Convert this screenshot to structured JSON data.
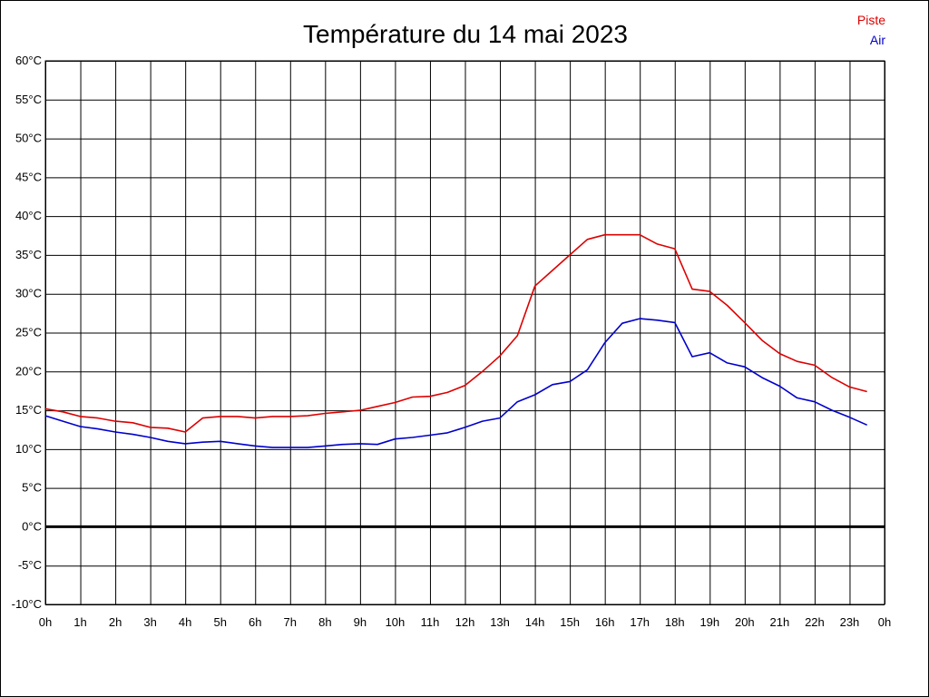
{
  "chart_data": {
    "type": "line",
    "title": "Température du 14 mai 2023",
    "y_unit": "°C",
    "ylim": [
      -10,
      60
    ],
    "y_ticks": [
      "60°C",
      "55°C",
      "50°C",
      "45°C",
      "40°C",
      "35°C",
      "30°C",
      "25°C",
      "20°C",
      "15°C",
      "10°C",
      "5°C",
      "0°C",
      "-5°C",
      "-10°C"
    ],
    "y_tick_values": [
      60,
      55,
      50,
      45,
      40,
      35,
      30,
      25,
      20,
      15,
      10,
      5,
      0,
      -5,
      -10
    ],
    "x_range": [
      0,
      24
    ],
    "x_ticks": [
      "0h",
      "1h",
      "2h",
      "3h",
      "4h",
      "5h",
      "6h",
      "7h",
      "8h",
      "9h",
      "10h",
      "11h",
      "12h",
      "13h",
      "14h",
      "15h",
      "16h",
      "17h",
      "18h",
      "19h",
      "20h",
      "21h",
      "22h",
      "23h",
      "0h"
    ],
    "grid": true,
    "legend_position": "top-right",
    "zero_line": 0,
    "x": [
      0,
      0.5,
      1,
      1.5,
      2,
      2.5,
      3,
      3.5,
      4,
      4.5,
      5,
      5.5,
      6,
      6.5,
      7,
      7.5,
      8,
      8.5,
      9,
      9.5,
      10,
      10.5,
      11,
      11.5,
      12,
      12.5,
      13,
      13.5,
      14,
      14.5,
      15,
      15.5,
      16,
      16.5,
      17,
      17.5,
      18,
      18.5,
      19,
      19.5,
      20,
      20.5,
      21,
      21.5,
      22,
      22.5,
      23,
      23.5
    ],
    "series": [
      {
        "name": "Piste",
        "color": "#dd0000",
        "values": [
          15.2,
          14.8,
          14.2,
          14.0,
          13.6,
          13.4,
          12.8,
          12.7,
          12.2,
          14.0,
          14.2,
          14.2,
          14.0,
          14.2,
          14.2,
          14.3,
          14.6,
          14.8,
          15.0,
          15.5,
          16.0,
          16.7,
          16.8,
          17.3,
          18.2,
          20.0,
          22.0,
          24.6,
          31.0,
          33.0,
          35.0,
          37.0,
          37.6,
          37.6,
          37.6,
          36.4,
          35.8,
          30.6,
          30.3,
          28.5,
          26.3,
          24.0,
          22.3,
          21.3,
          20.8,
          19.2,
          18.0,
          17.4
        ]
      },
      {
        "name": "Air",
        "color": "#0000cc",
        "values": [
          14.3,
          13.6,
          12.9,
          12.6,
          12.2,
          11.9,
          11.5,
          11.0,
          10.7,
          10.9,
          11.0,
          10.7,
          10.4,
          10.2,
          10.2,
          10.2,
          10.4,
          10.6,
          10.7,
          10.6,
          11.3,
          11.5,
          11.8,
          12.1,
          12.8,
          13.6,
          14.0,
          16.1,
          17.0,
          18.3,
          18.7,
          20.2,
          23.7,
          26.2,
          26.8,
          26.6,
          26.3,
          21.9,
          22.4,
          21.1,
          20.6,
          19.2,
          18.1,
          16.6,
          16.1,
          15.0,
          14.1,
          13.1
        ]
      }
    ]
  }
}
